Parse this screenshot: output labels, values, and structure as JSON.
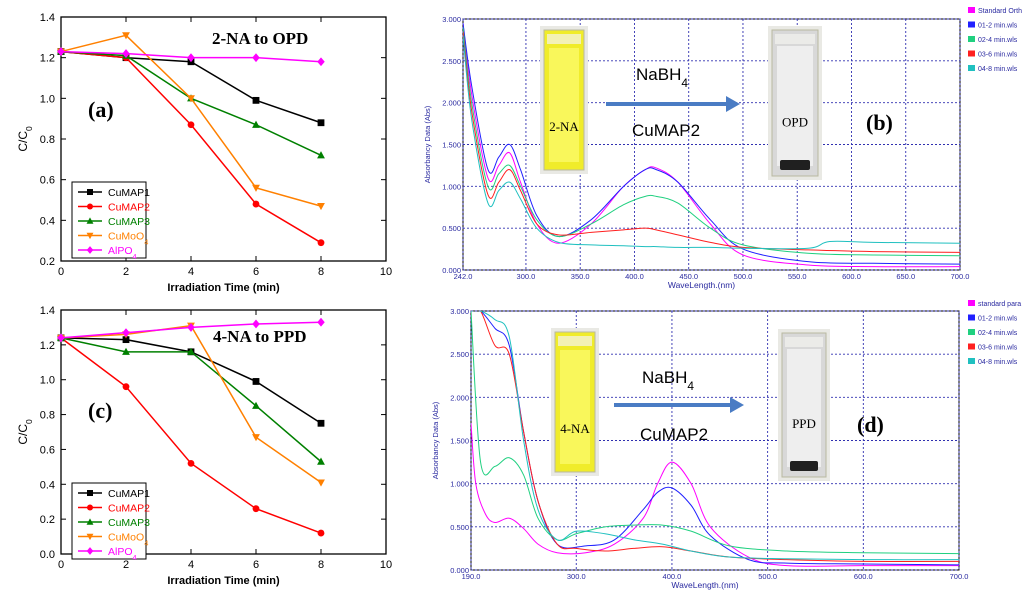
{
  "chart_data": [
    {
      "panel": "(a)",
      "type": "line",
      "title": "2-NA to OPD",
      "xlabel": "Irradiation Time (min)",
      "ylabel": "C/C0",
      "xlim": [
        0,
        10
      ],
      "ylim": [
        0.2,
        1.4
      ],
      "xticks": [
        0,
        2,
        4,
        6,
        8,
        10
      ],
      "yticks": [
        0.2,
        0.4,
        0.6,
        0.8,
        1.0,
        1.2,
        1.4
      ],
      "legend_position": "bottom-left",
      "x": [
        0,
        2,
        4,
        6,
        8
      ],
      "series": [
        {
          "name": "CuMAP1",
          "name_sub": "",
          "color": "#000000",
          "marker": "square",
          "values": [
            1.23,
            1.2,
            1.18,
            0.99,
            0.88
          ]
        },
        {
          "name": "CuMAP2",
          "name_sub": "",
          "color": "#ff0000",
          "marker": "circle",
          "values": [
            1.23,
            1.2,
            0.87,
            0.48,
            0.29
          ]
        },
        {
          "name": "CuMAP3",
          "name_sub": "",
          "color": "#008000",
          "marker": "triangle-up",
          "values": [
            1.23,
            1.21,
            1.0,
            0.87,
            0.72
          ]
        },
        {
          "name": "CuMoO",
          "name_sub": "4",
          "color": "#ff8000",
          "marker": "triangle-down",
          "values": [
            1.23,
            1.31,
            1.0,
            0.56,
            0.47
          ]
        },
        {
          "name": "AlPO",
          "name_sub": "4",
          "color": "#ff00ff",
          "marker": "diamond",
          "values": [
            1.23,
            1.22,
            1.2,
            1.2,
            1.18
          ]
        }
      ]
    },
    {
      "panel": "(b)",
      "type": "line",
      "xlabel": "WaveLength.(nm)",
      "ylabel": "Absorbancy Data (Abs)",
      "xlim": [
        242,
        700
      ],
      "ylim": [
        0,
        3
      ],
      "xticks": [
        "242.0",
        "300.0",
        "350.0",
        "400.0",
        "450.0",
        "500.0",
        "550.0",
        "600.0",
        "650.0",
        "700.0"
      ],
      "yticks": [
        "0.000",
        "0.500",
        "1.000",
        "1.500",
        "2.000",
        "2.500",
        "3.000"
      ],
      "legend_position": "right",
      "annotation": {
        "reagent": "NaBH",
        "reagent_sub": "4",
        "catalyst": "CuMAP2",
        "start": "2-NA",
        "product": "OPD"
      },
      "series": [
        {
          "name": "Standard Orth",
          "color": "#ff00ff",
          "x": [
            242,
            250,
            265,
            275,
            285,
            295,
            310,
            330,
            360,
            390,
            410,
            420,
            440,
            470,
            500,
            560,
            620,
            700
          ],
          "values": [
            2.95,
            2.1,
            1.1,
            1.25,
            1.4,
            1.05,
            0.55,
            0.32,
            0.55,
            1.0,
            1.2,
            1.22,
            1.05,
            0.55,
            0.18,
            0.06,
            0.04,
            0.04
          ]
        },
        {
          "name": "01-2 min.wls",
          "color": "#2020ff",
          "x": [
            242,
            250,
            265,
            275,
            285,
            295,
            310,
            330,
            360,
            390,
            410,
            420,
            440,
            470,
            500,
            560,
            620,
            700
          ],
          "values": [
            2.95,
            2.2,
            1.2,
            1.35,
            1.5,
            1.2,
            0.65,
            0.4,
            0.6,
            1.0,
            1.2,
            1.2,
            1.05,
            0.6,
            0.25,
            0.1,
            0.08,
            0.07
          ]
        },
        {
          "name": "02-4 min.wls",
          "color": "#20d080",
          "x": [
            242,
            250,
            265,
            275,
            285,
            295,
            310,
            330,
            360,
            390,
            410,
            420,
            440,
            470,
            500,
            560,
            620,
            700
          ],
          "values": [
            2.9,
            2.0,
            1.0,
            1.15,
            1.25,
            1.0,
            0.6,
            0.4,
            0.55,
            0.78,
            0.88,
            0.88,
            0.8,
            0.5,
            0.3,
            0.2,
            0.18,
            0.17
          ]
        },
        {
          "name": "03-6 min.wls",
          "color": "#ff2020",
          "x": [
            242,
            250,
            265,
            275,
            285,
            295,
            310,
            330,
            360,
            390,
            410,
            420,
            440,
            470,
            500,
            560,
            620,
            700
          ],
          "values": [
            2.85,
            1.9,
            0.9,
            1.05,
            1.2,
            0.95,
            0.55,
            0.42,
            0.45,
            0.48,
            0.5,
            0.48,
            0.42,
            0.33,
            0.27,
            0.24,
            0.22,
            0.21
          ]
        },
        {
          "name": "04-8 min.wls",
          "color": "#20c0c0",
          "x": [
            242,
            250,
            265,
            275,
            285,
            295,
            310,
            330,
            360,
            390,
            410,
            420,
            440,
            470,
            500,
            560,
            580,
            620,
            700
          ],
          "values": [
            2.8,
            1.8,
            0.8,
            0.95,
            1.05,
            0.85,
            0.5,
            0.33,
            0.3,
            0.29,
            0.28,
            0.28,
            0.27,
            0.27,
            0.26,
            0.26,
            0.34,
            0.33,
            0.32
          ]
        }
      ]
    },
    {
      "panel": "(c)",
      "type": "line",
      "title": "4-NA to PPD",
      "xlabel": "Irradiation Time (min)",
      "ylabel": "C/C0",
      "xlim": [
        0,
        10
      ],
      "ylim": [
        0.0,
        1.4
      ],
      "xticks": [
        0,
        2,
        4,
        6,
        8,
        10
      ],
      "yticks": [
        0.0,
        0.2,
        0.4,
        0.6,
        0.8,
        1.0,
        1.2,
        1.4
      ],
      "legend_position": "bottom-left",
      "x": [
        0,
        2,
        4,
        6,
        8
      ],
      "series": [
        {
          "name": "CuMAP1",
          "name_sub": "",
          "color": "#000000",
          "marker": "square",
          "values": [
            1.24,
            1.23,
            1.16,
            0.99,
            0.75
          ]
        },
        {
          "name": "CuMAP2",
          "name_sub": "",
          "color": "#ff0000",
          "marker": "circle",
          "values": [
            1.24,
            0.96,
            0.52,
            0.26,
            0.12
          ]
        },
        {
          "name": "CuMAP3",
          "name_sub": "",
          "color": "#008000",
          "marker": "triangle-up",
          "values": [
            1.24,
            1.16,
            1.16,
            0.85,
            0.53
          ]
        },
        {
          "name": "CuMoO",
          "name_sub": "4",
          "color": "#ff8000",
          "marker": "triangle-down",
          "values": [
            1.24,
            1.26,
            1.31,
            0.67,
            0.41
          ]
        },
        {
          "name": "AlPO",
          "name_sub": "4",
          "color": "#ff00ff",
          "marker": "diamond",
          "values": [
            1.24,
            1.27,
            1.3,
            1.32,
            1.33
          ]
        }
      ]
    },
    {
      "panel": "(d)",
      "type": "line",
      "xlabel": "WaveLength.(nm)",
      "ylabel": "Absorbancy Data (Abs)",
      "xlim": [
        190,
        700
      ],
      "ylim": [
        0,
        3
      ],
      "xticks": [
        "190.0",
        "300.0",
        "400.0",
        "500.0",
        "600.0",
        "700.0"
      ],
      "yticks": [
        "0.000",
        "0.500",
        "1.000",
        "1.500",
        "2.000",
        "2.500",
        "3.000"
      ],
      "legend_position": "right",
      "annotation": {
        "reagent": "NaBH",
        "reagent_sub": "4",
        "catalyst": "CuMAP2",
        "start": "4-NA",
        "product": "PPD"
      },
      "series": [
        {
          "name": "standard para",
          "color": "#ff00ff",
          "x": [
            190,
            195,
            205,
            215,
            230,
            245,
            260,
            280,
            310,
            340,
            370,
            385,
            400,
            420,
            440,
            480,
            520,
            600,
            700
          ],
          "values": [
            1.7,
            1.0,
            0.65,
            0.55,
            0.6,
            0.48,
            0.3,
            0.2,
            0.2,
            0.3,
            0.6,
            1.0,
            1.25,
            1.0,
            0.5,
            0.15,
            0.05,
            0.05,
            0.05
          ]
        },
        {
          "name": "01-2 min.wls",
          "color": "#2020ff",
          "x": [
            190,
            200,
            215,
            230,
            245,
            260,
            280,
            310,
            340,
            370,
            385,
            400,
            420,
            440,
            480,
            520,
            600,
            700
          ],
          "values": [
            3.0,
            3.0,
            2.8,
            2.6,
            1.6,
            0.8,
            0.3,
            0.28,
            0.35,
            0.7,
            0.9,
            0.95,
            0.75,
            0.4,
            0.12,
            0.08,
            0.07,
            0.06
          ]
        },
        {
          "name": "02-4 min.wls",
          "color": "#20d080",
          "x": [
            190,
            200,
            215,
            230,
            245,
            260,
            280,
            300,
            330,
            360,
            390,
            420,
            460,
            520,
            600,
            700
          ],
          "values": [
            3.0,
            1.25,
            1.2,
            1.3,
            1.1,
            0.6,
            0.35,
            0.42,
            0.5,
            0.52,
            0.52,
            0.45,
            0.28,
            0.22,
            0.2,
            0.19
          ]
        },
        {
          "name": "03-6 min.wls",
          "color": "#ff2020",
          "x": [
            190,
            200,
            215,
            230,
            245,
            260,
            280,
            300,
            330,
            360,
            390,
            420,
            460,
            520,
            600,
            700
          ],
          "values": [
            3.0,
            3.0,
            2.6,
            2.5,
            1.6,
            0.8,
            0.3,
            0.25,
            0.22,
            0.25,
            0.27,
            0.22,
            0.15,
            0.12,
            0.1,
            0.1
          ]
        },
        {
          "name": "04-8 min.wls",
          "color": "#20c0c0",
          "x": [
            190,
            200,
            215,
            230,
            245,
            260,
            280,
            300,
            330,
            360,
            390,
            420,
            460,
            520,
            600,
            700
          ],
          "values": [
            3.0,
            3.0,
            2.9,
            2.7,
            1.5,
            0.7,
            0.35,
            0.45,
            0.42,
            0.35,
            0.3,
            0.22,
            0.15,
            0.13,
            0.12,
            0.12
          ]
        }
      ]
    }
  ]
}
